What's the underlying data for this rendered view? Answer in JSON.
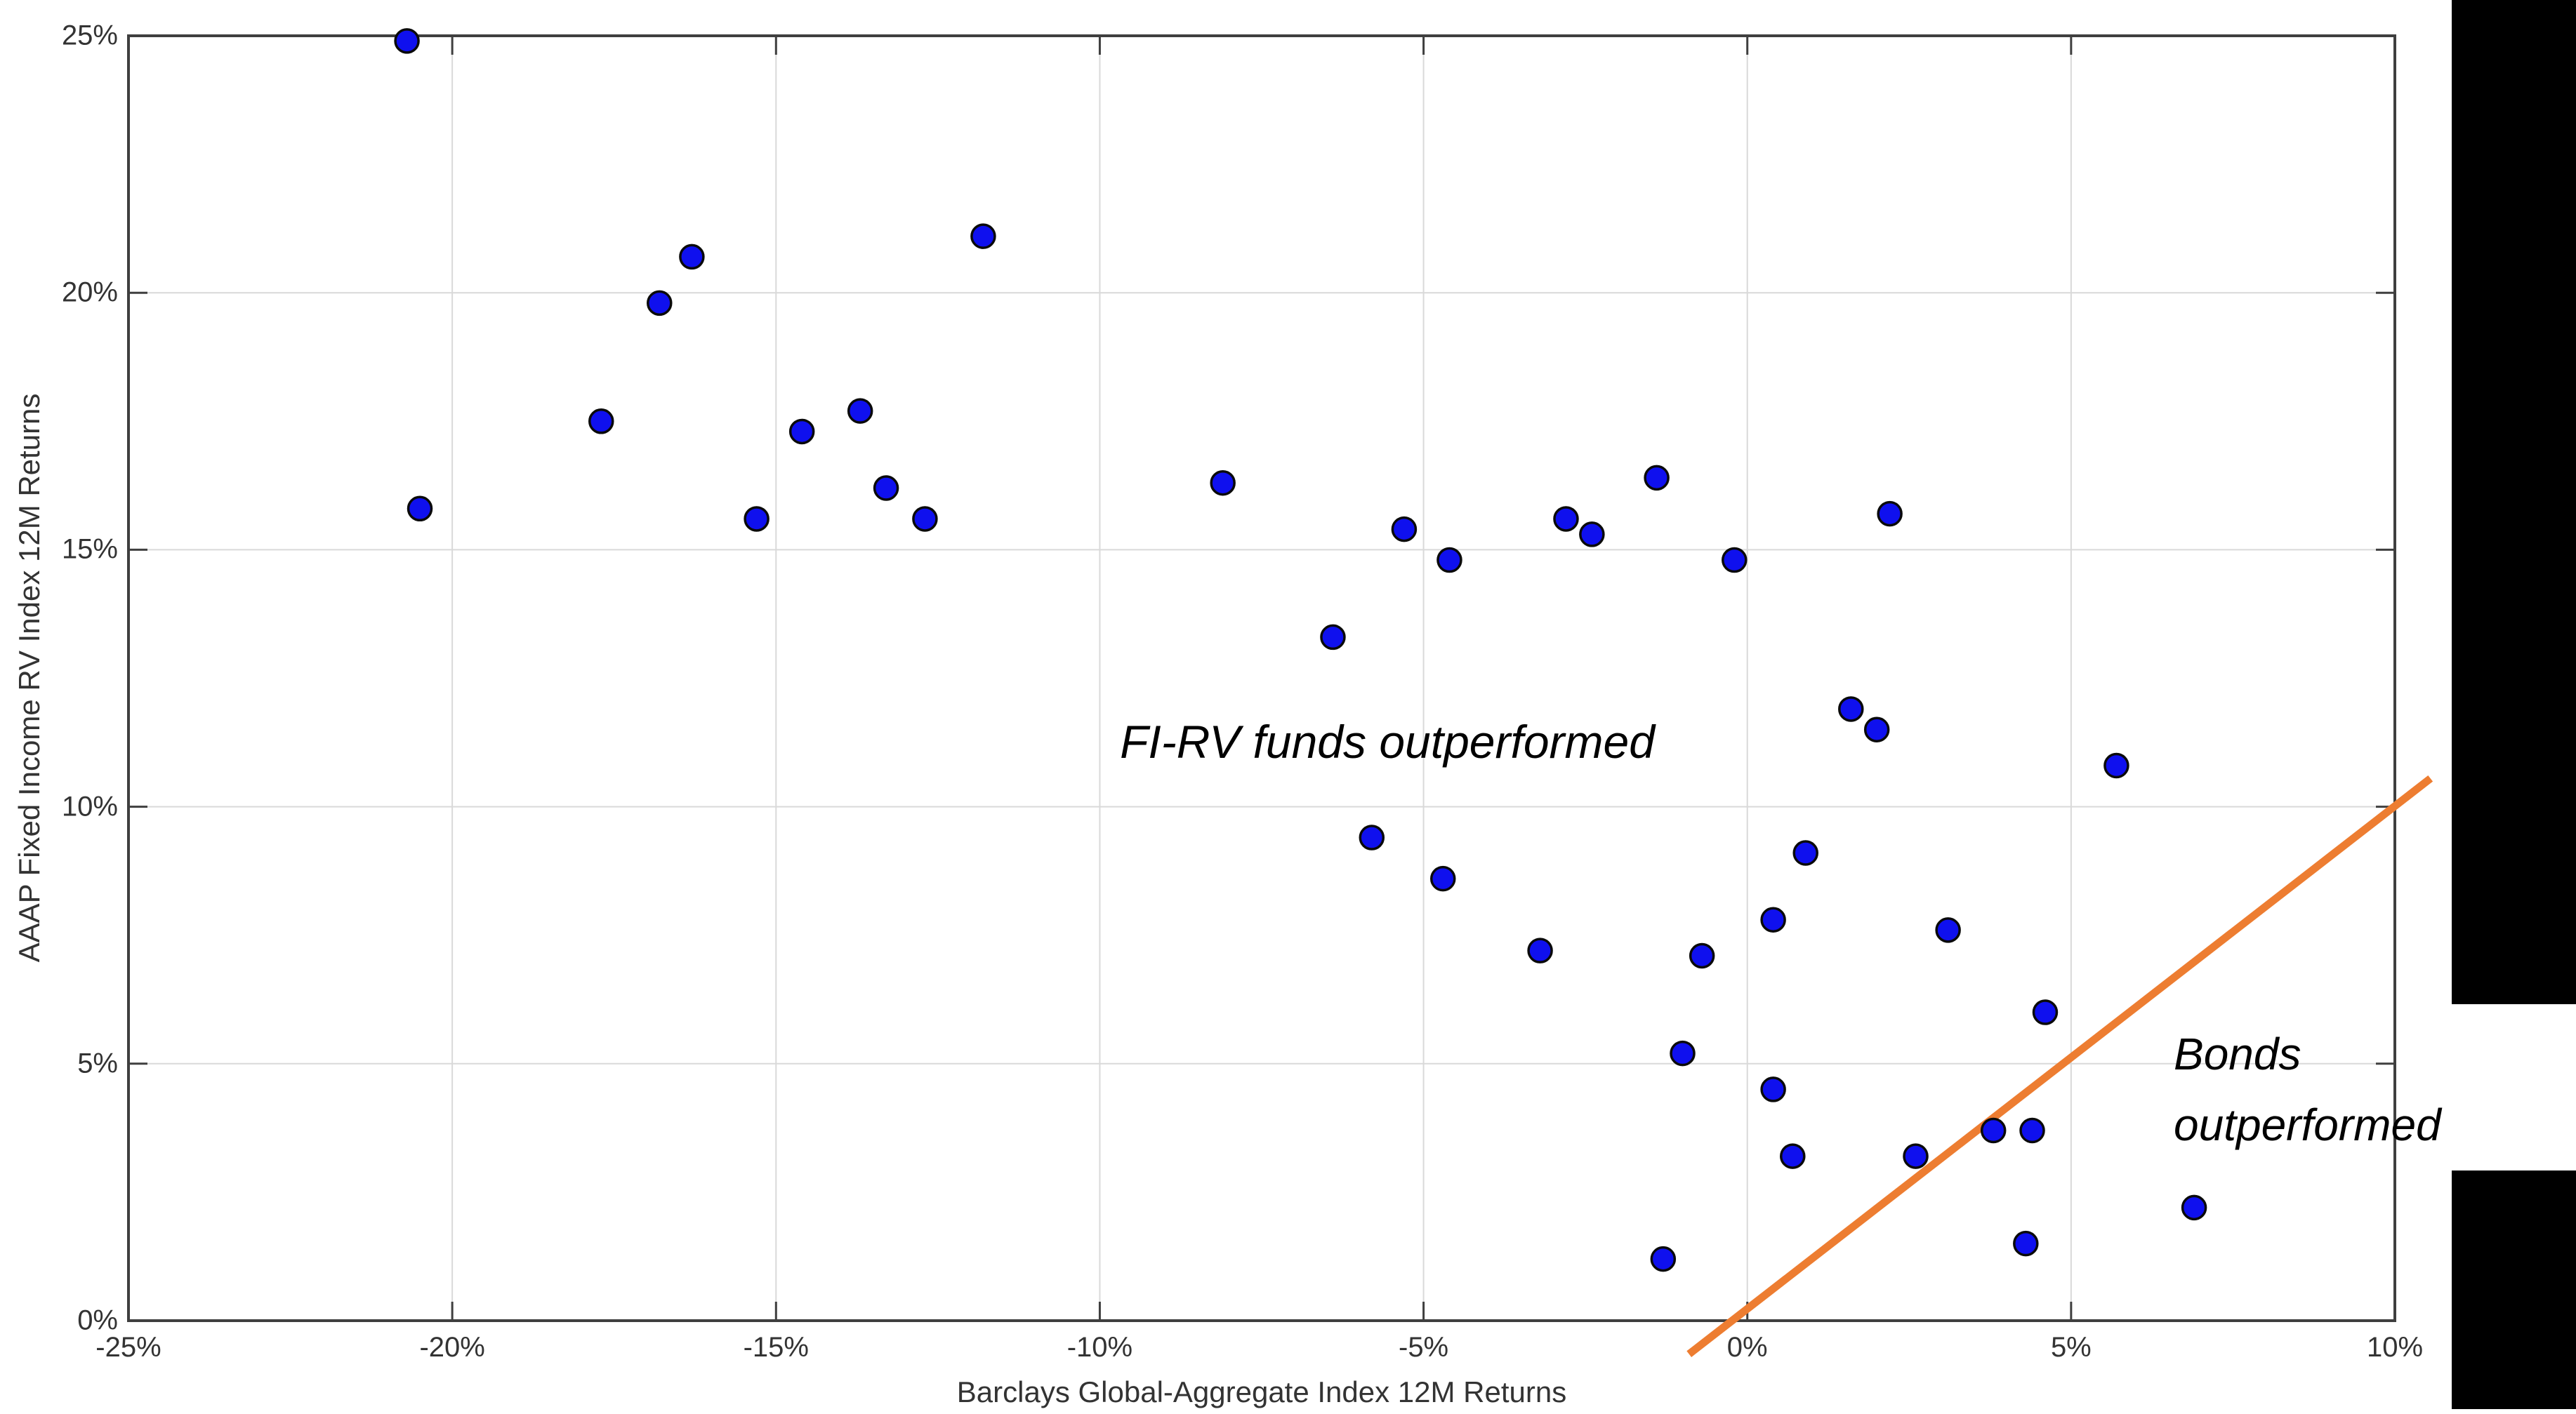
{
  "chart_data": {
    "type": "scatter",
    "title": "",
    "xlabel": "Barclays Global-Aggregate Index 12M Returns",
    "ylabel": "AAAP Fixed Income RV Index 12M Returns",
    "xlim": [
      -25,
      10
    ],
    "ylim": [
      0,
      25
    ],
    "x_ticks": [
      -25,
      -20,
      -15,
      -10,
      -5,
      0,
      5,
      10
    ],
    "y_ticks": [
      0,
      5,
      10,
      15,
      20,
      25
    ],
    "tick_suffix": "%",
    "grid": true,
    "legend": "none",
    "points": [
      [
        -20.7,
        24.9
      ],
      [
        -20.5,
        15.8
      ],
      [
        -17.7,
        17.5
      ],
      [
        -16.8,
        19.8
      ],
      [
        -16.3,
        20.7
      ],
      [
        -15.3,
        15.6
      ],
      [
        -14.6,
        17.3
      ],
      [
        -13.7,
        17.7
      ],
      [
        -13.3,
        16.2
      ],
      [
        -12.7,
        15.6
      ],
      [
        -11.8,
        21.1
      ],
      [
        -8.1,
        16.3
      ],
      [
        -6.4,
        13.3
      ],
      [
        -5.8,
        9.4
      ],
      [
        -5.3,
        15.4
      ],
      [
        -4.7,
        8.6
      ],
      [
        -4.6,
        14.8
      ],
      [
        -3.2,
        7.2
      ],
      [
        -2.8,
        15.6
      ],
      [
        -2.4,
        15.3
      ],
      [
        -1.4,
        16.4
      ],
      [
        -1.3,
        1.2
      ],
      [
        -1.0,
        5.2
      ],
      [
        -0.7,
        7.1
      ],
      [
        -0.2,
        14.8
      ],
      [
        0.4,
        7.8
      ],
      [
        0.4,
        4.5
      ],
      [
        0.7,
        3.2
      ],
      [
        0.9,
        9.1
      ],
      [
        1.6,
        11.9
      ],
      [
        2.0,
        11.5
      ],
      [
        2.2,
        15.7
      ],
      [
        2.6,
        3.2
      ],
      [
        3.1,
        7.6
      ],
      [
        3.8,
        3.7
      ],
      [
        4.3,
        1.5
      ],
      [
        4.4,
        3.7
      ],
      [
        4.6,
        6.0
      ],
      [
        5.7,
        10.8
      ],
      [
        6.9,
        2.2
      ]
    ],
    "diagonal_line": {
      "from": [
        -0.9,
        -0.65
      ],
      "to": [
        10.55,
        10.55
      ]
    },
    "annotations": {
      "firv": "FI-RV funds outperformed",
      "bonds_line1": "Bonds",
      "bonds_line2": "outperformed"
    },
    "colors": {
      "point_fill": "#0f10ee",
      "point_stroke": "#0a0a0a",
      "grid": "#d9d9d9",
      "axis": "#3f3f3f",
      "diagonal": "#ed7d31",
      "annotation_text": "#000000",
      "side_bars": "#000000"
    }
  }
}
